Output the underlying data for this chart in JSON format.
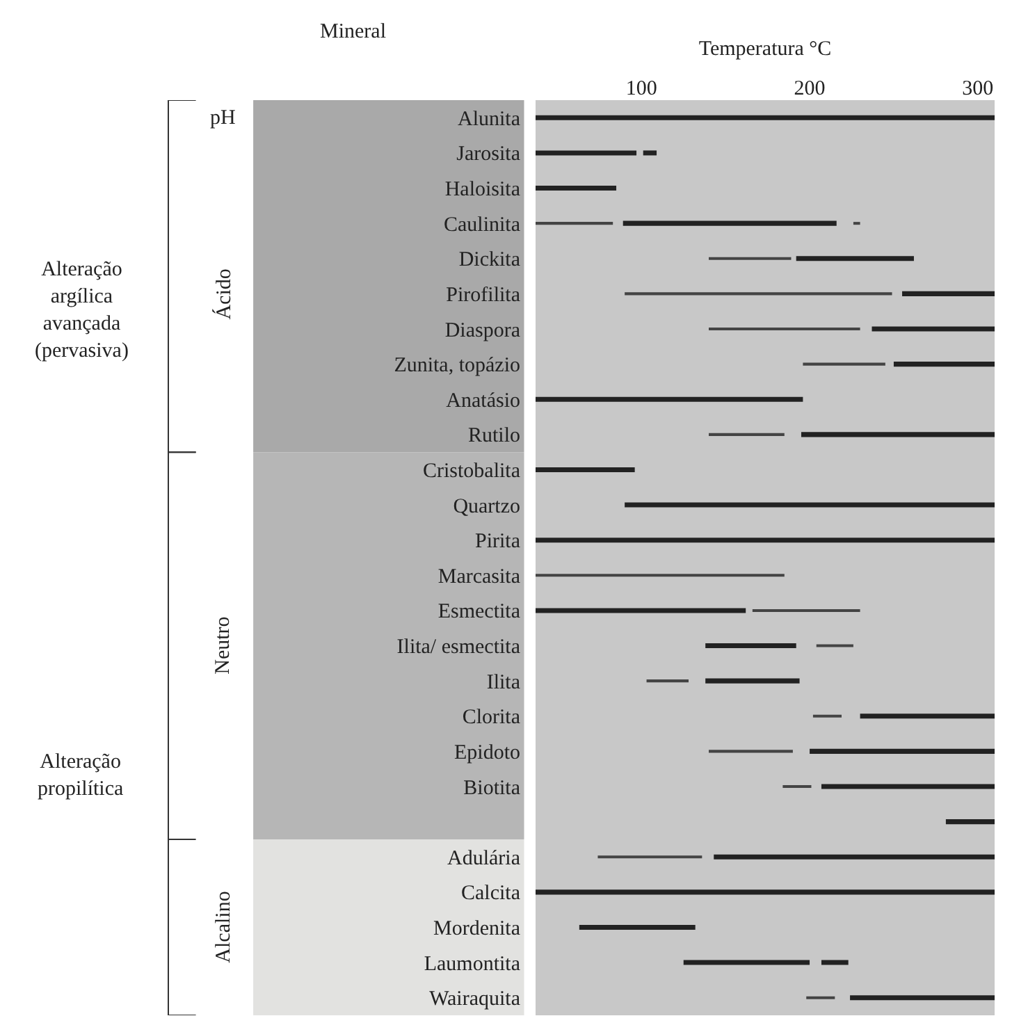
{
  "chart_data": {
    "type": "bar",
    "orientation": "horizontal",
    "xlabel": "Temperatura °C",
    "categories": [
      "Alunita",
      "Jarosita",
      "Haloisita",
      "Caulinita",
      "Dickita",
      "Pirofilita",
      "Diaspora",
      "Zunita, topázio",
      "Anatásio",
      "Rutilo",
      "Cristobalita",
      "Quartzo",
      "Pirita",
      "Marcasita",
      "Esmectita",
      "Ilita/ esmectita",
      "Ilita",
      "Clorita",
      "Epidoto",
      "Biotita",
      null,
      "Adulária",
      "Calcita",
      "Mordenita",
      "Laumontita",
      "Wairaquita"
    ],
    "xlim": [
      37,
      310
    ],
    "xticks": [
      100,
      200,
      300
    ],
    "grid": false,
    "series": [
      {
        "color": "#222222",
        "line_style": "solid",
        "base": [
          37,
          37,
          37,
          89,
          192,
          255,
          237,
          250,
          37,
          195,
          37,
          90,
          37,
          null,
          37,
          138,
          138,
          230,
          200,
          207,
          281,
          143,
          37,
          63,
          125,
          224
        ],
        "values": [
          273,
          60,
          48,
          127,
          70,
          55,
          73,
          60,
          159,
          115,
          59,
          220,
          273,
          null,
          125,
          54,
          56,
          80,
          110,
          103,
          29,
          167,
          273,
          69,
          75,
          86
        ]
      },
      {
        "color": "#222222",
        "line_style": "solid",
        "base": [
          null,
          101,
          null,
          null,
          null,
          null,
          null,
          null,
          null,
          null,
          null,
          null,
          null,
          null,
          null,
          null,
          null,
          null,
          null,
          null,
          null,
          null,
          null,
          null,
          207,
          null
        ],
        "values": [
          null,
          8,
          null,
          null,
          null,
          null,
          null,
          null,
          null,
          null,
          null,
          null,
          null,
          null,
          null,
          null,
          null,
          null,
          null,
          null,
          null,
          null,
          null,
          null,
          16,
          null
        ]
      },
      {
        "color": "#444444",
        "line_style": "dotted",
        "base": [
          null,
          null,
          null,
          37,
          140,
          90,
          140,
          196,
          null,
          140,
          null,
          null,
          null,
          37,
          166,
          204,
          103,
          202,
          140,
          184,
          null,
          74,
          null,
          null,
          null,
          198
        ],
        "values": [
          null,
          null,
          null,
          46,
          49,
          159,
          90,
          49,
          null,
          45,
          null,
          null,
          null,
          148,
          64,
          22,
          25,
          17,
          50,
          17,
          null,
          62,
          null,
          null,
          null,
          17
        ]
      },
      {
        "color": "#444444",
        "line_style": "dotted",
        "base": [
          null,
          null,
          null,
          226,
          null,
          null,
          null,
          null,
          null,
          null,
          null,
          null,
          null,
          null,
          null,
          null,
          null,
          null,
          null,
          null,
          null,
          null,
          null,
          null,
          null,
          null
        ],
        "values": [
          null,
          null,
          null,
          4,
          null,
          null,
          null,
          null,
          null,
          null,
          null,
          null,
          null,
          null,
          null,
          null,
          null,
          null,
          null,
          null,
          null,
          null,
          null,
          null,
          null,
          null
        ]
      }
    ],
    "annotations": [
      "Mineral",
      "pH",
      "Ácido",
      "Neutro",
      "Alcalino",
      "Alteração argílica avançada (pervasiva)",
      "Alteração propilítica"
    ]
  }
}
